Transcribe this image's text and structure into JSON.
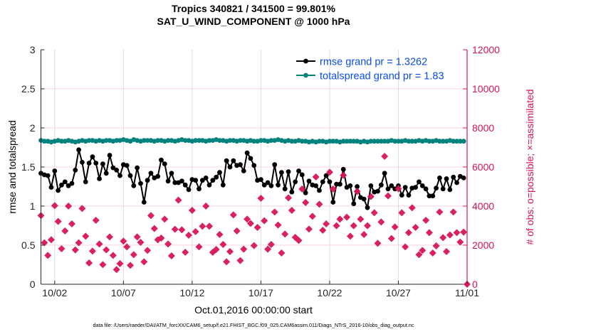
{
  "chart_data": {
    "type": "line",
    "title": [
      "Tropics 340821 / 341500 = 99.801%",
      "SAT_U_WIND_COMPONENT @ 1000 hPa"
    ],
    "xlabel": "Oct.01,2016 00:00:00 start",
    "ylabel": "rmse and totalspread",
    "ylabel_right": "# of obs: o=possible; ×=assimilated",
    "xlim_days": [
      0,
      31
    ],
    "x_step_days": 0.25,
    "ylim": [
      0,
      3
    ],
    "ylim_right": [
      0,
      12000
    ],
    "xticks": [
      {
        "day": 1,
        "label": "10/02"
      },
      {
        "day": 6,
        "label": "10/07"
      },
      {
        "day": 11,
        "label": "10/12"
      },
      {
        "day": 16,
        "label": "10/17"
      },
      {
        "day": 21,
        "label": "10/22"
      },
      {
        "day": 26,
        "label": "10/27"
      },
      {
        "day": 31,
        "label": "11/01"
      }
    ],
    "yticks": [
      {
        "v": 0,
        "label": "0"
      },
      {
        "v": 0.5,
        "label": "0.5"
      },
      {
        "v": 1,
        "label": "1"
      },
      {
        "v": 1.5,
        "label": "1.5"
      },
      {
        "v": 2,
        "label": "2"
      },
      {
        "v": 2.5,
        "label": "2.5"
      },
      {
        "v": 3,
        "label": "3"
      }
    ],
    "yticks_right": [
      {
        "v": 0,
        "label": "0"
      },
      {
        "v": 2000,
        "label": "2000"
      },
      {
        "v": 4000,
        "label": "4000"
      },
      {
        "v": 6000,
        "label": "6000"
      },
      {
        "v": 8000,
        "label": "8000"
      },
      {
        "v": 10000,
        "label": "10000"
      },
      {
        "v": 12000,
        "label": "12000"
      }
    ],
    "legend_position": "top-right",
    "grid": true,
    "series": [
      {
        "name": "rmse grand pr = 1.3262",
        "color": "#000000",
        "axis": "left",
        "marker": "circle",
        "values": [
          1.42,
          1.4,
          1.39,
          1.24,
          1.45,
          1.2,
          1.27,
          1.31,
          1.26,
          1.29,
          1.46,
          1.72,
          1.56,
          1.31,
          1.55,
          1.63,
          1.55,
          1.35,
          1.54,
          1.42,
          1.65,
          1.49,
          1.46,
          1.39,
          1.53,
          1.52,
          1.39,
          1.26,
          1.49,
          1.29,
          1.05,
          1.33,
          1.42,
          1.36,
          1.38,
          1.59,
          1.54,
          1.32,
          1.42,
          1.3,
          1.3,
          1.32,
          1.27,
          1.21,
          1.34,
          1.33,
          1.22,
          1.33,
          1.36,
          1.27,
          1.33,
          1.37,
          1.43,
          1.27,
          1.58,
          1.5,
          1.58,
          1.52,
          1.53,
          1.45,
          1.68,
          1.61,
          1.52,
          1.33,
          1.34,
          1.27,
          1.3,
          1.26,
          1.53,
          1.27,
          1.43,
          1.22,
          1.44,
          1.18,
          1.31,
          1.45,
          1.4,
          1.17,
          1.32,
          1.27,
          1.26,
          1.2,
          1.31,
          1.39,
          1.31,
          1.05,
          1.28,
          1.28,
          1.47,
          1.24,
          1.26,
          1.03,
          1.25,
          1.11,
          1.09,
          0.98,
          1.26,
          1.18,
          1.19,
          1.27,
          1.42,
          1.22,
          1.26,
          1.22,
          1.26,
          1.14,
          1.24,
          1.14,
          1.23,
          1.24,
          1.31,
          1.26,
          1.22,
          1.13,
          1.13,
          1.23,
          1.36,
          1.22,
          1.35,
          1.21,
          1.37,
          1.3,
          1.38,
          1.36
        ]
      },
      {
        "name": "totalspread grand pr = 1.83",
        "color": "#00827f",
        "axis": "left",
        "marker": "circle",
        "values": [
          1.84,
          1.83,
          1.83,
          1.82,
          1.83,
          1.84,
          1.83,
          1.83,
          1.84,
          1.83,
          1.82,
          1.83,
          1.84,
          1.83,
          1.84,
          1.84,
          1.83,
          1.84,
          1.83,
          1.84,
          1.84,
          1.83,
          1.84,
          1.84,
          1.85,
          1.84,
          1.83,
          1.85,
          1.84,
          1.83,
          1.84,
          1.84,
          1.84,
          1.83,
          1.84,
          1.84,
          1.83,
          1.84,
          1.84,
          1.83,
          1.84,
          1.85,
          1.84,
          1.84,
          1.83,
          1.84,
          1.84,
          1.84,
          1.83,
          1.84,
          1.84,
          1.85,
          1.84,
          1.84,
          1.83,
          1.84,
          1.84,
          1.83,
          1.84,
          1.84,
          1.83,
          1.84,
          1.83,
          1.83,
          1.84,
          1.84,
          1.83,
          1.84,
          1.84,
          1.85,
          1.84,
          1.83,
          1.84,
          1.83,
          1.83,
          1.84,
          1.83,
          1.83,
          1.82,
          1.83,
          1.82,
          1.83,
          1.83,
          1.82,
          1.83,
          1.83,
          1.83,
          1.82,
          1.83,
          1.83,
          1.83,
          1.83,
          1.83,
          1.82,
          1.83,
          1.82,
          1.83,
          1.83,
          1.83,
          1.83,
          1.83,
          1.83,
          1.84,
          1.83,
          1.83,
          1.83,
          1.84,
          1.83,
          1.83,
          1.83,
          1.84,
          1.83,
          1.84,
          1.83,
          1.83,
          1.84,
          1.83,
          1.83,
          1.83,
          1.84,
          1.83,
          1.83,
          1.83,
          1.83
        ]
      },
      {
        "name": "# of obs",
        "color": "#d6145a",
        "axis": "right",
        "marker": "cross",
        "values": [
          3515,
          2121,
          1479,
          2279,
          4024,
          3212,
          1818,
          2727,
          4000,
          3091,
          1758,
          2121,
          3879,
          2461,
          1091,
          1697,
          3273,
          2061,
          1006,
          1758,
          2424,
          1479,
          752,
          1055,
          2206,
          1915,
          970,
          1515,
          2424,
          2145,
          1152,
          1733,
          3515,
          2848,
          2279,
          2364,
          3333,
          2061,
          1455,
          2812,
          4303,
          2788,
          1636,
          2509,
          3782,
          2691,
          1915,
          2970,
          4000,
          2970,
          1636,
          1782,
          2545,
          2036,
          1152,
          1673,
          3552,
          2727,
          1212,
          1794,
          3333,
          3115,
          1976,
          2909,
          4400,
          3248,
          1794,
          2036,
          3697,
          3030,
          1600,
          2570,
          4424,
          3782,
          2400,
          2242,
          4873,
          4182,
          2824,
          3479,
          5491,
          4097,
          2764,
          3091,
          5733,
          4873,
          2994,
          3333,
          5576,
          3430,
          2461,
          2994,
          4752,
          3333,
          2545,
          2994,
          4485,
          3661,
          2097,
          3188,
          6545,
          4521,
          2339,
          2933,
          4885,
          3661,
          1915,
          2642,
          3915,
          2909,
          1515,
          1733,
          3273,
          2642,
          1600,
          1964,
          3697,
          2388,
          1673,
          2521,
          3697,
          2642,
          2158,
          2667,
          0
        ]
      }
    ]
  },
  "footer": "data file: /Users/raeder/DAI/ATM_forcXX/CAM6_setup/f.e21.FHIST_BGC.f09_025.CAM6assim.011/Diags_NTrS_2016-10/obs_diag_output.nc"
}
